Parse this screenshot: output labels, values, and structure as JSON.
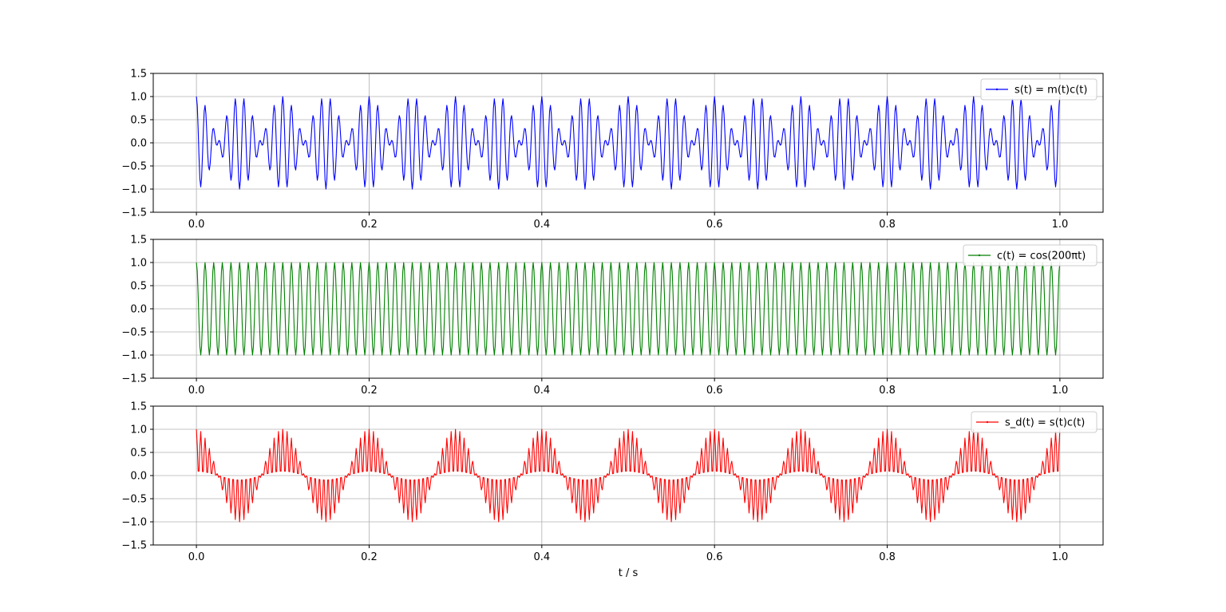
{
  "figure": {
    "xlabel": "t / s"
  },
  "chart_data": [
    {
      "type": "line",
      "title": "",
      "xlabel": "",
      "ylabel": "",
      "xlim": [
        -0.05,
        1.05
      ],
      "ylim": [
        -1.5,
        1.5
      ],
      "xticks": [
        0.0,
        0.2,
        0.4,
        0.6,
        0.8,
        1.0
      ],
      "xtick_labels": [
        "0.0",
        "0.2",
        "0.4",
        "0.6",
        "0.8",
        "1.0"
      ],
      "yticks": [
        1.5,
        1.0,
        0.5,
        0.0,
        -0.5,
        -1.0,
        -1.5
      ],
      "ytick_labels": [
        "1.5",
        "1.0",
        "0.5",
        "0.0",
        "−0.5",
        "−1.0",
        "−1.5"
      ],
      "grid": true,
      "legend_position": "top-right",
      "series": [
        {
          "name": "s(t) = m(t)c(t)",
          "color": "#0000ff",
          "expression": "cos(20πt)·cos(200πt)",
          "x_range": [
            0,
            1
          ],
          "sample_count": 1001,
          "marker": "point"
        }
      ]
    },
    {
      "type": "line",
      "title": "",
      "xlabel": "",
      "ylabel": "",
      "xlim": [
        -0.05,
        1.05
      ],
      "ylim": [
        -1.5,
        1.5
      ],
      "xticks": [
        0.0,
        0.2,
        0.4,
        0.6,
        0.8,
        1.0
      ],
      "xtick_labels": [
        "0.0",
        "0.2",
        "0.4",
        "0.6",
        "0.8",
        "1.0"
      ],
      "yticks": [
        1.5,
        1.0,
        0.5,
        0.0,
        -0.5,
        -1.0,
        -1.5
      ],
      "ytick_labels": [
        "1.5",
        "1.0",
        "0.5",
        "0.0",
        "−0.5",
        "−1.0",
        "−1.5"
      ],
      "grid": true,
      "legend_position": "top-right",
      "series": [
        {
          "name": "c(t) = cos(200πt)",
          "color": "#008000",
          "expression": "cos(200πt)",
          "x_range": [
            0,
            1
          ],
          "sample_count": 1001,
          "marker": "point"
        }
      ]
    },
    {
      "type": "line",
      "title": "",
      "xlabel": "t / s",
      "ylabel": "",
      "xlim": [
        -0.05,
        1.05
      ],
      "ylim": [
        -1.5,
        1.5
      ],
      "xticks": [
        0.0,
        0.2,
        0.4,
        0.6,
        0.8,
        1.0
      ],
      "xtick_labels": [
        "0.0",
        "0.2",
        "0.4",
        "0.6",
        "0.8",
        "1.0"
      ],
      "yticks": [
        1.5,
        1.0,
        0.5,
        0.0,
        -0.5,
        -1.0,
        -1.5
      ],
      "ytick_labels": [
        "1.5",
        "1.0",
        "0.5",
        "0.0",
        "−0.5",
        "−1.0",
        "−1.5"
      ],
      "grid": true,
      "legend_position": "top-right",
      "series": [
        {
          "name": "s_d(t) = s(t)c(t)",
          "color": "#ff0000",
          "expression": "cos(20πt)·cos²(200πt)",
          "x_range": [
            0,
            1
          ],
          "sample_count": 1001,
          "marker": "point"
        }
      ]
    }
  ]
}
